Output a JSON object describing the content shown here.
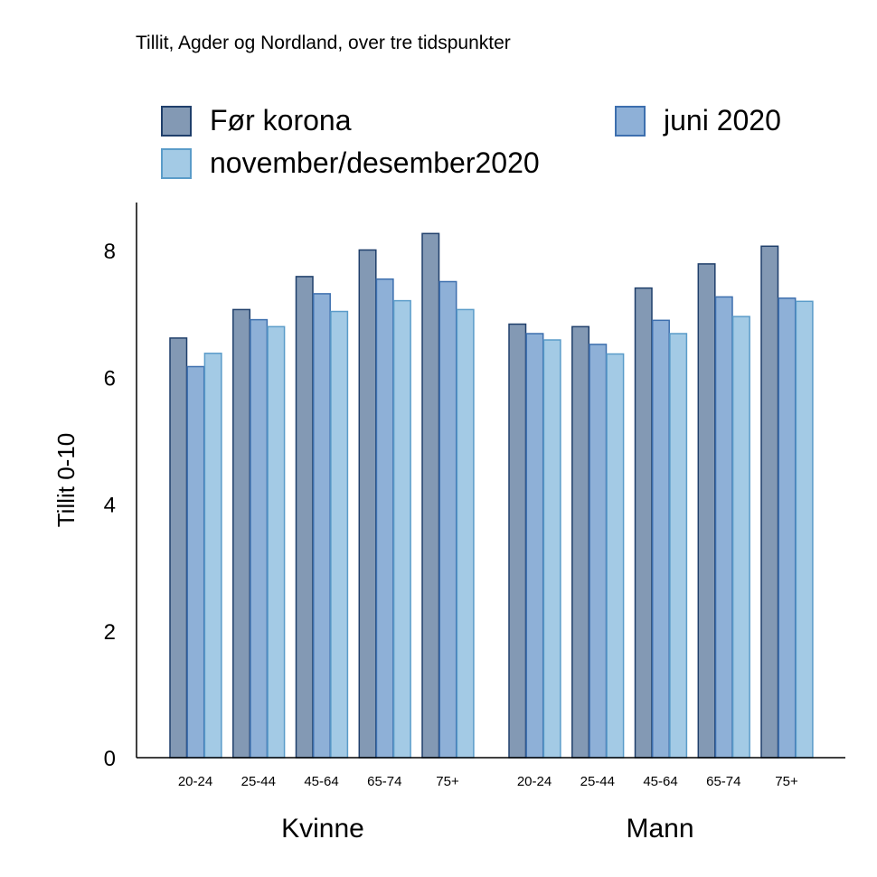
{
  "chart_data": {
    "type": "bar",
    "title": "Tillit, Agder og Nordland, over tre tidspunkter",
    "ylabel": "Tillit 0-10",
    "ylim": [
      0,
      8.8
    ],
    "yticks": [
      0,
      2,
      4,
      6,
      8
    ],
    "groups": [
      {
        "name": "Kvinne",
        "categories": [
          "20-24",
          "25-44",
          "45-64",
          "65-74",
          "75+"
        ]
      },
      {
        "name": "Mann",
        "categories": [
          "20-24",
          "25-44",
          "45-64",
          "65-74",
          "75+"
        ]
      }
    ],
    "series": [
      {
        "name": "Før korona",
        "color": "#8399b4",
        "stroke": "#1f3f6b",
        "values": [
          6.62,
          7.07,
          7.59,
          8.01,
          8.27,
          6.84,
          6.8,
          7.41,
          7.79,
          8.07
        ]
      },
      {
        "name": "juni 2020",
        "color": "#8eb0d7",
        "stroke": "#3d6fae",
        "values": [
          6.17,
          6.91,
          7.32,
          7.55,
          7.51,
          6.69,
          6.52,
          6.9,
          7.27,
          7.25
        ]
      },
      {
        "name": "november/desember2020",
        "color": "#a3cae5",
        "stroke": "#5a9cc9",
        "values": [
          6.38,
          6.8,
          7.04,
          7.21,
          7.07,
          6.59,
          6.37,
          6.69,
          6.96,
          7.2
        ]
      }
    ],
    "grid": false,
    "legend": "top"
  }
}
